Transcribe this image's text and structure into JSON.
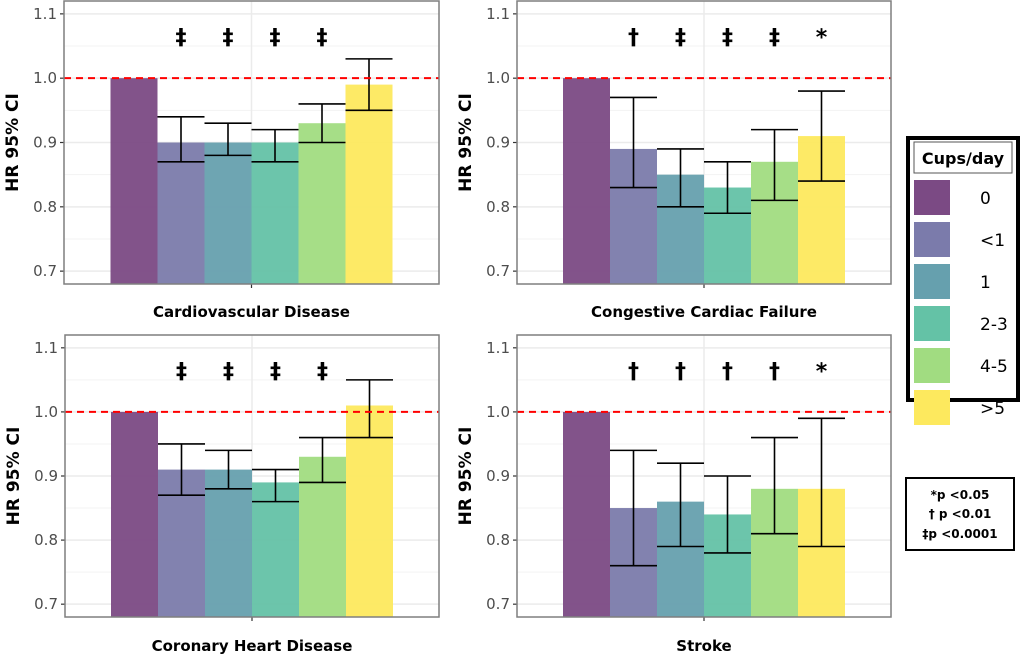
{
  "chart_data": [
    {
      "type": "bar",
      "title": "Cardiovascular Disease",
      "ylabel": "HR 95% CI",
      "ylim": [
        0.68,
        1.12
      ],
      "yticks": [
        "0.7",
        "0.8",
        "0.9",
        "1.0",
        "1.1"
      ],
      "reference_line": 1.0,
      "categories": [
        "0",
        "<1",
        "1",
        "2-3",
        "4-5",
        ">5"
      ],
      "values": [
        1.0,
        0.9,
        0.9,
        0.9,
        0.93,
        0.99
      ],
      "ci_low": [
        null,
        0.87,
        0.88,
        0.87,
        0.9,
        0.95
      ],
      "ci_high": [
        null,
        0.94,
        0.93,
        0.92,
        0.96,
        1.03
      ],
      "significance": [
        "",
        "‡",
        "‡",
        "‡",
        "‡",
        ""
      ]
    },
    {
      "type": "bar",
      "title": "Congestive Cardiac Failure",
      "ylabel": "HR 95% CI",
      "ylim": [
        0.68,
        1.12
      ],
      "yticks": [
        "0.7",
        "0.8",
        "0.9",
        "1.0",
        "1.1"
      ],
      "reference_line": 1.0,
      "categories": [
        "0",
        "<1",
        "1",
        "2-3",
        "4-5",
        ">5"
      ],
      "values": [
        1.0,
        0.89,
        0.85,
        0.83,
        0.87,
        0.91
      ],
      "ci_low": [
        null,
        0.83,
        0.8,
        0.79,
        0.81,
        0.84
      ],
      "ci_high": [
        null,
        0.97,
        0.89,
        0.87,
        0.92,
        0.98
      ],
      "significance": [
        "",
        "†",
        "‡",
        "‡",
        "‡",
        "*"
      ]
    },
    {
      "type": "bar",
      "title": "Coronary Heart Disease",
      "ylabel": "HR 95% CI",
      "ylim": [
        0.68,
        1.12
      ],
      "yticks": [
        "0.7",
        "0.8",
        "0.9",
        "1.0",
        "1.1"
      ],
      "reference_line": 1.0,
      "categories": [
        "0",
        "<1",
        "1",
        "2-3",
        "4-5",
        ">5"
      ],
      "values": [
        1.0,
        0.91,
        0.91,
        0.89,
        0.93,
        1.01
      ],
      "ci_low": [
        null,
        0.87,
        0.88,
        0.86,
        0.89,
        0.96
      ],
      "ci_high": [
        null,
        0.95,
        0.94,
        0.91,
        0.96,
        1.05
      ],
      "significance": [
        "",
        "‡",
        "‡",
        "‡",
        "‡",
        ""
      ]
    },
    {
      "type": "bar",
      "title": "Stroke",
      "ylabel": "HR 95% CI",
      "ylim": [
        0.68,
        1.12
      ],
      "yticks": [
        "0.7",
        "0.8",
        "0.9",
        "1.0",
        "1.1"
      ],
      "reference_line": 1.0,
      "categories": [
        "0",
        "<1",
        "1",
        "2-3",
        "4-5",
        ">5"
      ],
      "values": [
        1.0,
        0.85,
        0.86,
        0.84,
        0.88,
        0.88
      ],
      "ci_low": [
        null,
        0.76,
        0.79,
        0.78,
        0.81,
        0.79
      ],
      "ci_high": [
        null,
        0.94,
        0.92,
        0.9,
        0.96,
        0.99
      ],
      "significance": [
        "",
        "†",
        "†",
        "†",
        "†",
        "*"
      ]
    }
  ],
  "legend": {
    "title": "Cups/day",
    "placement": "right",
    "items": [
      {
        "label": "0",
        "color": "#7b4a84"
      },
      {
        "label": "<1",
        "color": "#7b7bab"
      },
      {
        "label": "1",
        "color": "#66a0ae"
      },
      {
        "label": "2-3",
        "color": "#64c2a6"
      },
      {
        "label": "4-5",
        "color": "#a1dc81"
      },
      {
        "label": ">5",
        "color": "#fde95e"
      }
    ]
  },
  "significance_note": [
    "*p <0.05",
    "† p <0.01",
    "‡p <0.0001"
  ],
  "colors": {
    "reference_line": "#ff0000",
    "grid": "#ebebeb",
    "panel_border": "#7f7f7f"
  }
}
